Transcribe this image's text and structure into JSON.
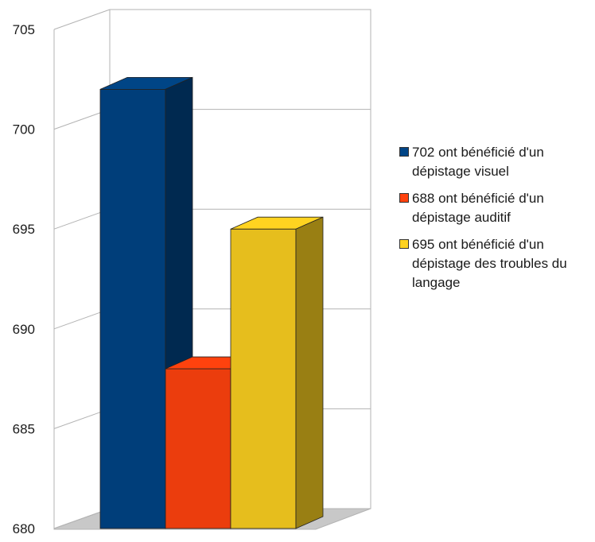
{
  "chart_data": {
    "type": "bar",
    "style": "3d-clustered",
    "title": "",
    "xlabel": "",
    "ylabel": "",
    "ylim": [
      680,
      705
    ],
    "yticks": [
      680,
      685,
      690,
      695,
      700,
      705
    ],
    "grid": true,
    "legend_position": "right",
    "series": [
      {
        "name": "702 ont bénéficié d'un dépistage visuel",
        "values": [
          702
        ],
        "color": "#004586"
      },
      {
        "name": "688 ont bénéficié d'un dépistage auditif",
        "values": [
          688
        ],
        "color": "#ff420e"
      },
      {
        "name": "695 ont bénéficié d'un dépistage des troubles du langage",
        "values": [
          695
        ],
        "color": "#ffd320"
      }
    ]
  }
}
